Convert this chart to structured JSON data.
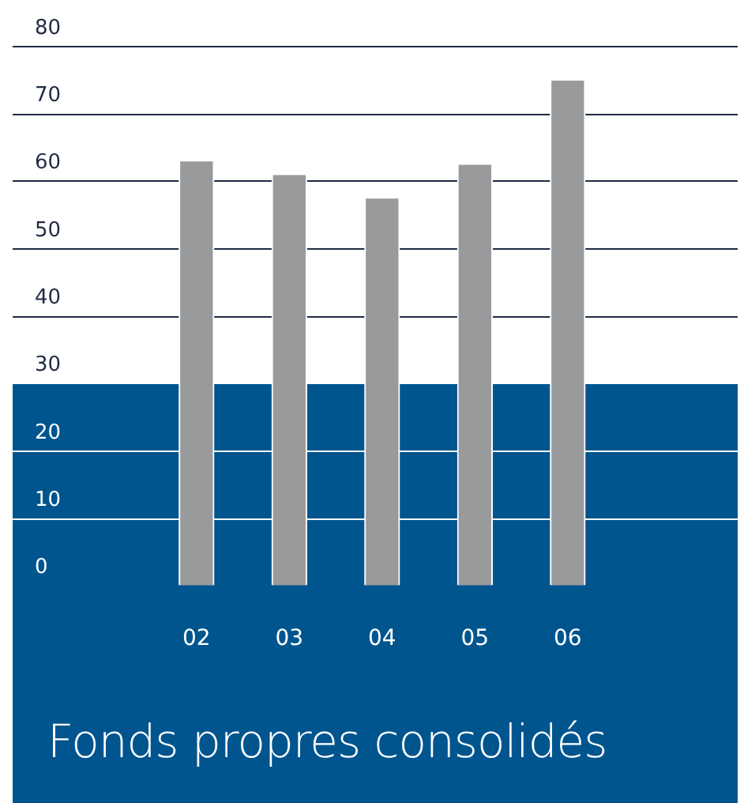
{
  "chart_data": {
    "type": "bar",
    "title": "Fonds propres consolidés",
    "categories": [
      "02",
      "03",
      "04",
      "05",
      "06"
    ],
    "values": [
      63,
      61,
      57.5,
      62.5,
      75
    ],
    "color": "#999a9c",
    "ylim": [
      0,
      80
    ],
    "yticks": [
      0,
      10,
      20,
      30,
      40,
      50,
      60,
      70,
      80
    ],
    "grid": "y",
    "bands": [
      {
        "axis": "y",
        "from": 0,
        "to": 30,
        "color": "#00558f"
      }
    ]
  }
}
